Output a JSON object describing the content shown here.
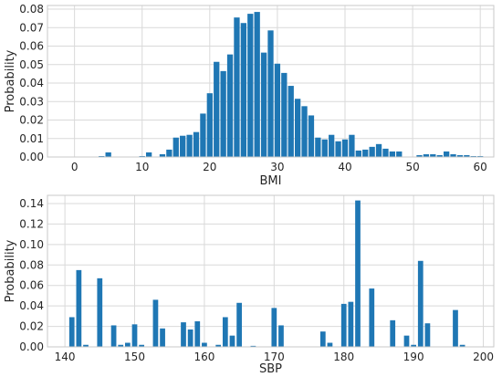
{
  "chart_data": [
    {
      "type": "bar",
      "xlabel": "BMI",
      "ylabel": "Probability",
      "xlim": [
        -4,
        62
      ],
      "ylim": [
        0,
        0.082
      ],
      "xticks": [
        0,
        10,
        20,
        30,
        40,
        50,
        60
      ],
      "yticks": [
        0.0,
        0.01,
        0.02,
        0.03,
        0.04,
        0.05,
        0.06,
        0.07,
        0.08
      ],
      "ytick_labels": [
        "0.00",
        "0.01",
        "0.02",
        "0.03",
        "0.04",
        "0.05",
        "0.06",
        "0.07",
        "0.08"
      ],
      "grid": true,
      "bar_width": 0.85,
      "color": "#1f77b4",
      "x": [
        4,
        5,
        10,
        11,
        13,
        14,
        15,
        16,
        17,
        18,
        19,
        20,
        21,
        22,
        23,
        24,
        25,
        26,
        27,
        28,
        29,
        30,
        31,
        32,
        33,
        34,
        35,
        36,
        37,
        38,
        39,
        40,
        41,
        42,
        43,
        44,
        45,
        46,
        47,
        48,
        51,
        52,
        53,
        54,
        55,
        56,
        57,
        58,
        59,
        60
      ],
      "values": [
        0.0005,
        0.0025,
        0.0005,
        0.0025,
        0.0015,
        0.004,
        0.0105,
        0.0115,
        0.012,
        0.0135,
        0.0235,
        0.0345,
        0.0515,
        0.0465,
        0.0555,
        0.0755,
        0.0725,
        0.0775,
        0.0785,
        0.0565,
        0.0685,
        0.0505,
        0.0455,
        0.0385,
        0.0315,
        0.0275,
        0.0225,
        0.0105,
        0.0095,
        0.012,
        0.0085,
        0.0095,
        0.012,
        0.0035,
        0.004,
        0.0055,
        0.007,
        0.0045,
        0.003,
        0.003,
        0.001,
        0.0015,
        0.0015,
        0.001,
        0.003,
        0.0015,
        0.001,
        0.001,
        0.0005,
        0.0005
      ]
    },
    {
      "type": "bar",
      "xlabel": "SBP",
      "ylabel": "Probability",
      "xlim": [
        137.5,
        201.5
      ],
      "ylim": [
        0,
        0.148
      ],
      "xticks": [
        140,
        150,
        160,
        170,
        180,
        190,
        200
      ],
      "yticks": [
        0.0,
        0.02,
        0.04,
        0.06,
        0.08,
        0.1,
        0.12,
        0.14
      ],
      "ytick_labels": [
        "0.00",
        "0.02",
        "0.04",
        "0.06",
        "0.08",
        "0.10",
        "0.12",
        "0.14"
      ],
      "grid": true,
      "bar_width": 0.75,
      "color": "#1f77b4",
      "x": [
        141,
        142,
        143,
        145,
        147,
        148,
        149,
        150,
        151,
        153,
        154,
        157,
        158,
        159,
        160,
        162,
        163,
        164,
        165,
        167,
        170,
        171,
        177,
        178,
        180,
        181,
        182,
        184,
        187,
        189,
        190,
        191,
        192,
        196,
        197
      ],
      "values": [
        0.029,
        0.075,
        0.002,
        0.067,
        0.021,
        0.002,
        0.004,
        0.022,
        0.002,
        0.046,
        0.018,
        0.024,
        0.017,
        0.025,
        0.004,
        0.002,
        0.029,
        0.011,
        0.043,
        0.001,
        0.038,
        0.021,
        0.015,
        0.004,
        0.042,
        0.044,
        0.143,
        0.057,
        0.026,
        0.011,
        0.002,
        0.084,
        0.023,
        0.036,
        0.002
      ]
    }
  ]
}
